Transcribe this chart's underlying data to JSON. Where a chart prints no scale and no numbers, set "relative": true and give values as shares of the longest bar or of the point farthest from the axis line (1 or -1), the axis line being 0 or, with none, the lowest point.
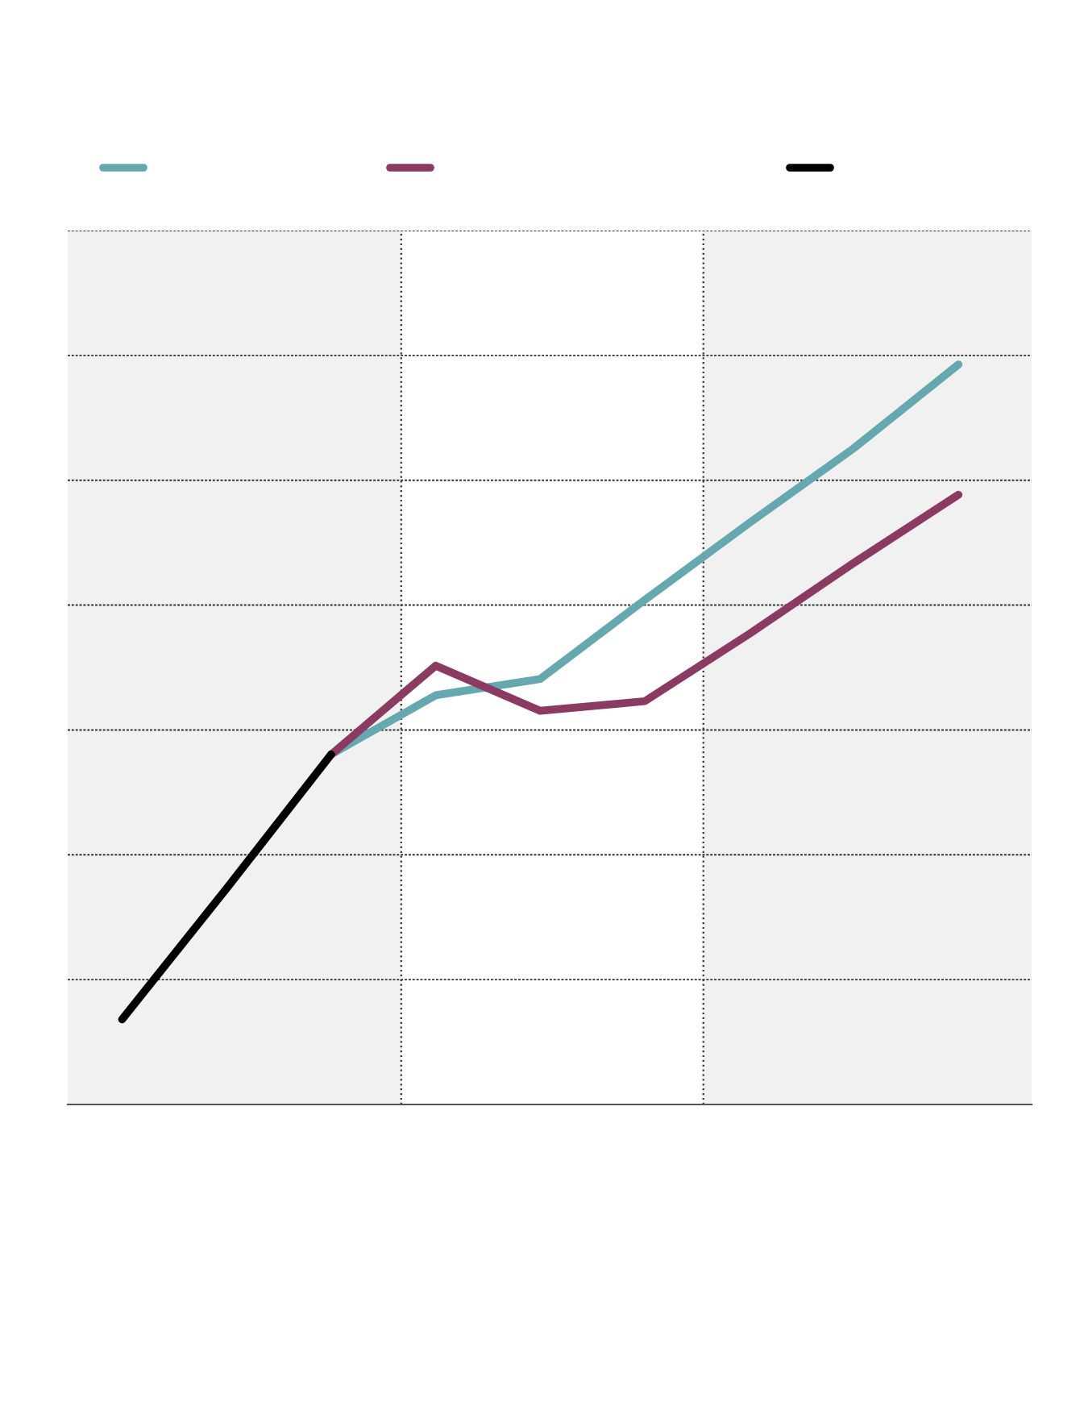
{
  "chart_data": {
    "type": "line",
    "relative": true,
    "categories": [
      null,
      null,
      null,
      null,
      null,
      null,
      null,
      null,
      null
    ],
    "series": [
      {
        "color": "#66a8b0",
        "values": [
          null,
          null,
          0.473,
          0.553,
          0.575,
          0.682,
          0.786,
          0.887,
          1
        ]
      },
      {
        "color": "#8b3a62",
        "values": [
          null,
          null,
          0.473,
          0.593,
          0.532,
          0.545,
          0.636,
          0.732,
          0.824
        ]
      },
      {
        "color": "#000000",
        "values": [
          0.115,
          0.292,
          0.473,
          null,
          null,
          null,
          null,
          null,
          null
        ]
      }
    ],
    "grid": "y",
    "marker": "none",
    "line_style": "solid"
  }
}
